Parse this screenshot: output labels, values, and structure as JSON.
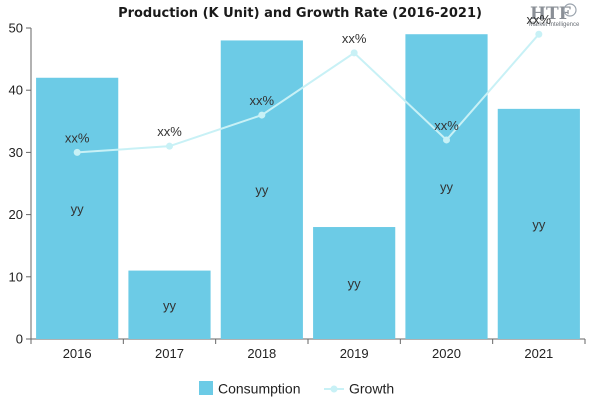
{
  "chart_data": {
    "type": "bar",
    "title": "Production (K Unit) and Growth Rate (2016-2021)",
    "categories": [
      "2016",
      "2017",
      "2018",
      "2019",
      "2020",
      "2021"
    ],
    "series": [
      {
        "name": "Consumption",
        "type": "bar",
        "values": [
          42,
          11,
          48,
          18,
          49,
          37
        ],
        "data_labels": [
          "yy",
          "yy",
          "yy",
          "yy",
          "yy",
          "yy"
        ],
        "color": "#6ccbe6"
      },
      {
        "name": "Growth",
        "type": "line",
        "values": [
          30,
          31,
          36,
          46,
          32,
          49
        ],
        "data_labels": [
          "xx%",
          "xx%",
          "xx%",
          "xx%",
          "xx%",
          "xx%"
        ],
        "color": "#c8f1f6"
      }
    ],
    "ylim": [
      0,
      50
    ],
    "yticks": [
      0,
      10,
      20,
      30,
      40,
      50
    ],
    "xlabel": "",
    "ylabel": "",
    "grid": false,
    "legend_position": "bottom-center"
  },
  "logo": {
    "text": "HTF",
    "subtitle": "Market Intelligence"
  },
  "colors": {
    "bar": "#6ccbe6",
    "line": "#c8f1f6",
    "axis": "#666666",
    "text": "#222222"
  }
}
